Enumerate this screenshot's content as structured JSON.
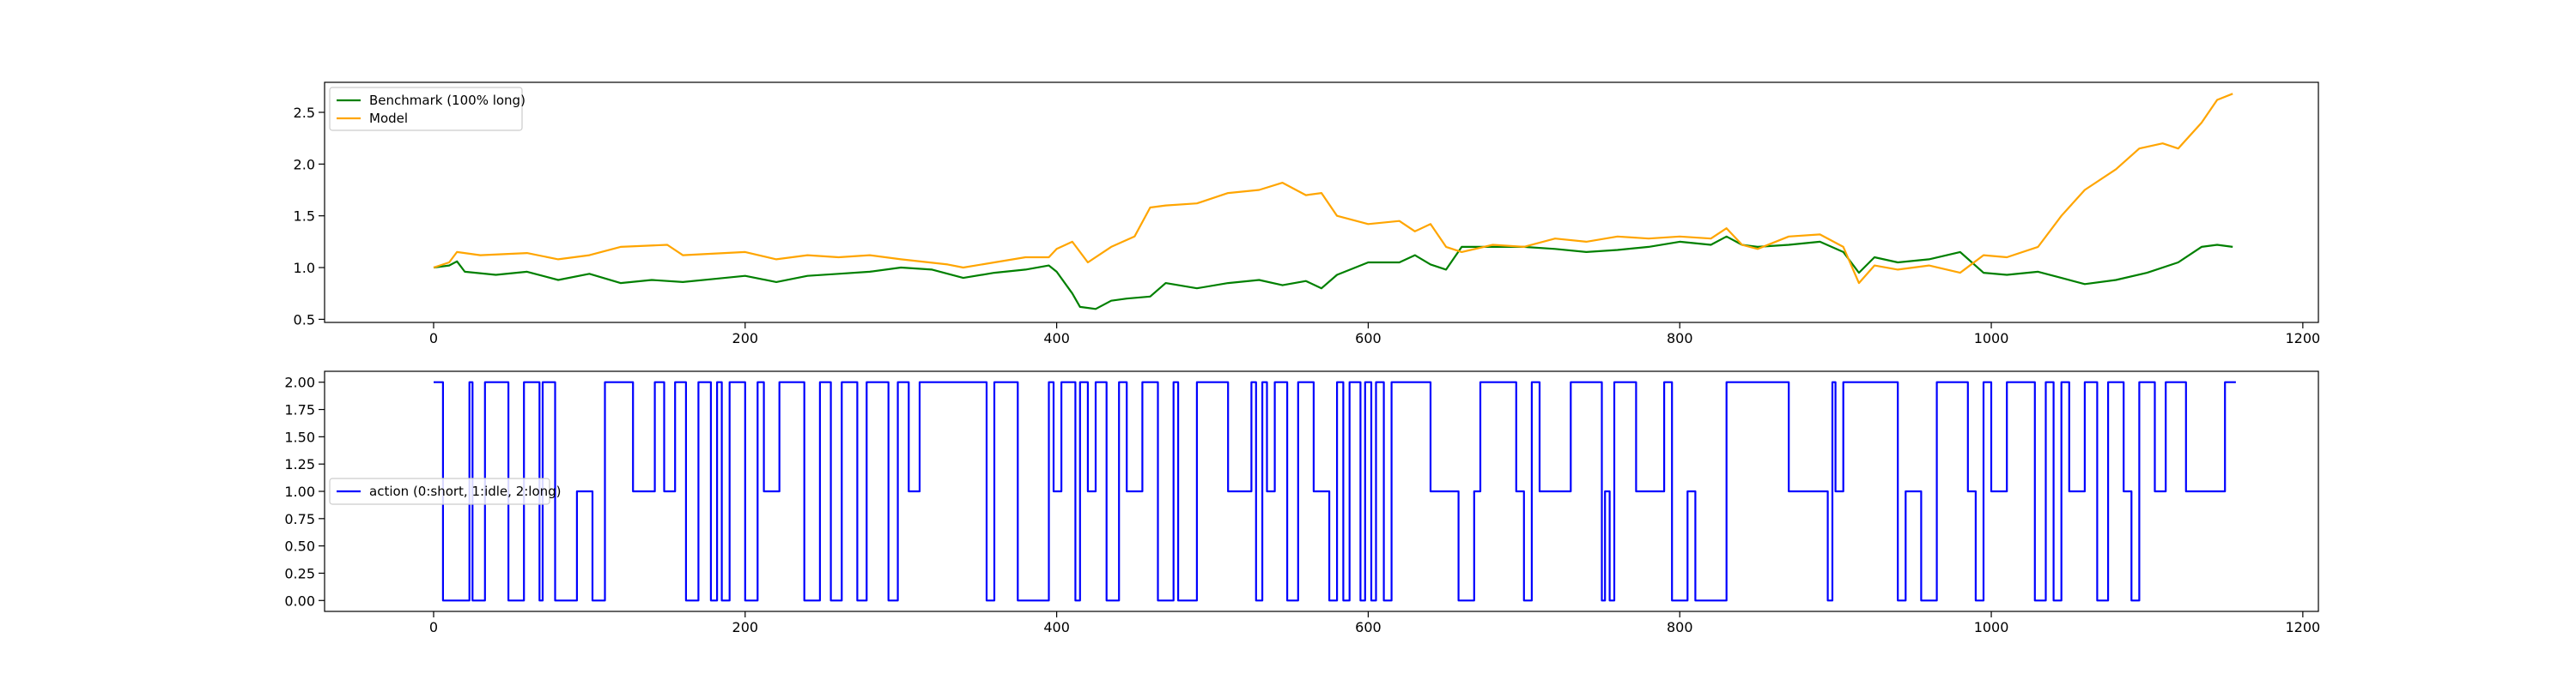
{
  "chart_data": [
    {
      "type": "line",
      "title": "",
      "xlabel": "",
      "ylabel": "",
      "xlim": [
        -70,
        1210
      ],
      "ylim": [
        0.47,
        2.79
      ],
      "xticks": [
        0,
        200,
        400,
        600,
        800,
        1000,
        1200
      ],
      "yticks": [
        0.5,
        1.0,
        1.5,
        2.0,
        2.5
      ],
      "xtick_labels": [
        "0",
        "200",
        "400",
        "600",
        "800",
        "1000",
        "1200"
      ],
      "ytick_labels": [
        "0.5",
        "1.0",
        "1.5",
        "2.0",
        "2.5"
      ],
      "grid": false,
      "legend_position": "upper-left",
      "series": [
        {
          "name": "Benchmark (100% long)",
          "color": "#008000",
          "points": [
            [
              0,
              1.0
            ],
            [
              10,
              1.02
            ],
            [
              15,
              1.06
            ],
            [
              20,
              0.96
            ],
            [
              40,
              0.93
            ],
            [
              60,
              0.96
            ],
            [
              80,
              0.88
            ],
            [
              100,
              0.94
            ],
            [
              120,
              0.85
            ],
            [
              140,
              0.88
            ],
            [
              160,
              0.86
            ],
            [
              180,
              0.89
            ],
            [
              200,
              0.92
            ],
            [
              220,
              0.86
            ],
            [
              240,
              0.92
            ],
            [
              260,
              0.94
            ],
            [
              280,
              0.96
            ],
            [
              300,
              1.0
            ],
            [
              320,
              0.98
            ],
            [
              340,
              0.9
            ],
            [
              360,
              0.95
            ],
            [
              380,
              0.98
            ],
            [
              395,
              1.02
            ],
            [
              400,
              0.96
            ],
            [
              410,
              0.75
            ],
            [
              415,
              0.62
            ],
            [
              425,
              0.6
            ],
            [
              435,
              0.68
            ],
            [
              445,
              0.7
            ],
            [
              460,
              0.72
            ],
            [
              470,
              0.85
            ],
            [
              490,
              0.8
            ],
            [
              510,
              0.85
            ],
            [
              530,
              0.88
            ],
            [
              545,
              0.83
            ],
            [
              560,
              0.87
            ],
            [
              570,
              0.8
            ],
            [
              580,
              0.93
            ],
            [
              600,
              1.05
            ],
            [
              620,
              1.05
            ],
            [
              630,
              1.12
            ],
            [
              640,
              1.03
            ],
            [
              650,
              0.98
            ],
            [
              660,
              1.2
            ],
            [
              680,
              1.2
            ],
            [
              700,
              1.2
            ],
            [
              720,
              1.18
            ],
            [
              740,
              1.15
            ],
            [
              760,
              1.17
            ],
            [
              780,
              1.2
            ],
            [
              800,
              1.25
            ],
            [
              820,
              1.22
            ],
            [
              830,
              1.3
            ],
            [
              840,
              1.22
            ],
            [
              850,
              1.2
            ],
            [
              870,
              1.22
            ],
            [
              890,
              1.25
            ],
            [
              905,
              1.15
            ],
            [
              915,
              0.95
            ],
            [
              925,
              1.1
            ],
            [
              940,
              1.05
            ],
            [
              960,
              1.08
            ],
            [
              980,
              1.15
            ],
            [
              995,
              0.95
            ],
            [
              1010,
              0.93
            ],
            [
              1030,
              0.96
            ],
            [
              1045,
              0.9
            ],
            [
              1060,
              0.84
            ],
            [
              1080,
              0.88
            ],
            [
              1100,
              0.95
            ],
            [
              1120,
              1.05
            ],
            [
              1135,
              1.2
            ],
            [
              1145,
              1.22
            ],
            [
              1155,
              1.2
            ]
          ]
        },
        {
          "name": "Model",
          "color": "#ffa500",
          "points": [
            [
              0,
              1.0
            ],
            [
              10,
              1.05
            ],
            [
              15,
              1.15
            ],
            [
              30,
              1.12
            ],
            [
              60,
              1.14
            ],
            [
              80,
              1.08
            ],
            [
              100,
              1.12
            ],
            [
              120,
              1.2
            ],
            [
              150,
              1.22
            ],
            [
              160,
              1.12
            ],
            [
              200,
              1.15
            ],
            [
              220,
              1.08
            ],
            [
              240,
              1.12
            ],
            [
              260,
              1.1
            ],
            [
              280,
              1.12
            ],
            [
              300,
              1.08
            ],
            [
              330,
              1.03
            ],
            [
              340,
              1.0
            ],
            [
              360,
              1.05
            ],
            [
              380,
              1.1
            ],
            [
              395,
              1.1
            ],
            [
              400,
              1.18
            ],
            [
              410,
              1.25
            ],
            [
              420,
              1.05
            ],
            [
              435,
              1.2
            ],
            [
              450,
              1.3
            ],
            [
              460,
              1.58
            ],
            [
              470,
              1.6
            ],
            [
              490,
              1.62
            ],
            [
              510,
              1.72
            ],
            [
              530,
              1.75
            ],
            [
              545,
              1.82
            ],
            [
              560,
              1.7
            ],
            [
              570,
              1.72
            ],
            [
              580,
              1.5
            ],
            [
              600,
              1.42
            ],
            [
              620,
              1.45
            ],
            [
              630,
              1.35
            ],
            [
              640,
              1.42
            ],
            [
              650,
              1.2
            ],
            [
              660,
              1.15
            ],
            [
              680,
              1.22
            ],
            [
              700,
              1.2
            ],
            [
              720,
              1.28
            ],
            [
              740,
              1.25
            ],
            [
              760,
              1.3
            ],
            [
              780,
              1.28
            ],
            [
              800,
              1.3
            ],
            [
              820,
              1.28
            ],
            [
              830,
              1.38
            ],
            [
              840,
              1.22
            ],
            [
              850,
              1.18
            ],
            [
              870,
              1.3
            ],
            [
              890,
              1.32
            ],
            [
              905,
              1.2
            ],
            [
              915,
              0.85
            ],
            [
              925,
              1.02
            ],
            [
              940,
              0.98
            ],
            [
              960,
              1.02
            ],
            [
              980,
              0.95
            ],
            [
              995,
              1.12
            ],
            [
              1010,
              1.1
            ],
            [
              1030,
              1.2
            ],
            [
              1045,
              1.5
            ],
            [
              1060,
              1.75
            ],
            [
              1080,
              1.95
            ],
            [
              1095,
              2.15
            ],
            [
              1110,
              2.2
            ],
            [
              1120,
              2.15
            ],
            [
              1135,
              2.4
            ],
            [
              1145,
              2.62
            ],
            [
              1155,
              2.68
            ]
          ]
        }
      ]
    },
    {
      "type": "line",
      "title": "",
      "xlabel": "",
      "ylabel": "",
      "xlim": [
        -70,
        1210
      ],
      "ylim": [
        -0.1,
        2.1
      ],
      "xticks": [
        0,
        200,
        400,
        600,
        800,
        1000,
        1200
      ],
      "yticks": [
        0.0,
        0.25,
        0.5,
        0.75,
        1.0,
        1.25,
        1.5,
        1.75,
        2.0
      ],
      "xtick_labels": [
        "0",
        "200",
        "400",
        "600",
        "800",
        "1000",
        "1200"
      ],
      "ytick_labels": [
        "0.00",
        "0.25",
        "0.50",
        "0.75",
        "1.00",
        "1.25",
        "1.50",
        "1.75",
        "2.00"
      ],
      "grid": false,
      "legend_position": "center-left",
      "series": [
        {
          "name": "action (0:short, 1:idle, 2:long)",
          "color": "#0000ff",
          "step_x": [
            0,
            6,
            23,
            25,
            33,
            48,
            58,
            68,
            70,
            78,
            92,
            102,
            110,
            128,
            142,
            148,
            155,
            162,
            170,
            178,
            182,
            185,
            190,
            200,
            208,
            212,
            222,
            238,
            248,
            255,
            262,
            272,
            278,
            292,
            298,
            305,
            312,
            355,
            360,
            375,
            395,
            398,
            403,
            412,
            415,
            420,
            425,
            432,
            440,
            445,
            455,
            465,
            475,
            478,
            490,
            510,
            525,
            528,
            532,
            535,
            540,
            548,
            555,
            565,
            575,
            580,
            584,
            588,
            595,
            598,
            602,
            605,
            610,
            615,
            640,
            658,
            668,
            672,
            695,
            700,
            705,
            710,
            730,
            750,
            752,
            755,
            758,
            772,
            790,
            795,
            805,
            810,
            830,
            870,
            895,
            898,
            900,
            905,
            940,
            945,
            955,
            965,
            985,
            990,
            995,
            1000,
            1010,
            1028,
            1035,
            1040,
            1045,
            1050,
            1060,
            1068,
            1075,
            1085,
            1090,
            1095,
            1105,
            1112,
            1125,
            1150,
            1157
          ],
          "step_y": [
            2,
            0,
            2,
            0,
            2,
            0,
            2,
            0,
            2,
            0,
            1,
            0,
            2,
            1,
            2,
            1,
            2,
            0,
            2,
            0,
            2,
            0,
            2,
            0,
            2,
            1,
            2,
            0,
            2,
            0,
            2,
            0,
            2,
            0,
            2,
            1,
            2,
            0,
            2,
            0,
            2,
            1,
            2,
            0,
            2,
            1,
            2,
            0,
            2,
            1,
            2,
            0,
            2,
            0,
            2,
            1,
            2,
            0,
            2,
            1,
            2,
            0,
            2,
            1,
            0,
            2,
            0,
            2,
            0,
            2,
            0,
            2,
            0,
            2,
            1,
            0,
            1,
            2,
            1,
            0,
            2,
            1,
            2,
            0,
            1,
            0,
            2,
            1,
            2,
            0,
            1,
            0,
            2,
            1,
            0,
            2,
            1,
            2,
            0,
            1,
            0,
            2,
            1,
            0,
            2,
            1,
            2,
            0,
            2,
            0,
            2,
            1,
            2,
            0,
            2,
            1,
            0,
            2,
            1,
            2,
            1,
            2,
            2
          ]
        }
      ]
    }
  ]
}
